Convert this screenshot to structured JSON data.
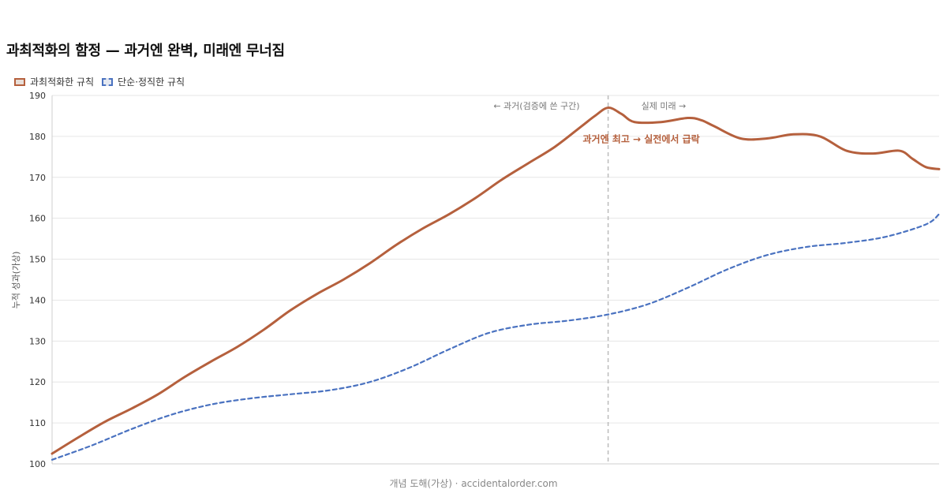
{
  "title": "과최적화의 함정 — 과거엔 완벽, 미래엔 무너짐",
  "footer": "개념 도해(가상) · accidentalorder.com",
  "colors": {
    "overfit": "#b5603d",
    "simple": "#4a72c0",
    "grid": "#e6e6e6",
    "divider": "#bbbbbb"
  },
  "chart_data": {
    "type": "line",
    "title": "과최적화의 함정 — 과거엔 완벽, 미래엔 무너짐",
    "ylabel": "누적 성과(가상)",
    "xlabel": "",
    "ylim": [
      100,
      190
    ],
    "yticks": [
      100,
      110,
      120,
      130,
      140,
      150,
      160,
      170,
      180,
      190
    ],
    "xlim": [
      0,
      67
    ],
    "grid": true,
    "legend_position": "top-left",
    "divider_x": 42,
    "region_labels": {
      "past": "← 과거(검증에 쓴 구간)",
      "future": "실제 미래 →"
    },
    "annotation": "과거엔 최고 → 실전에서 급락",
    "series": [
      {
        "name": "과최적화한 규칙",
        "style": "solid",
        "x": [
          0,
          2,
          4,
          6,
          8,
          10,
          12,
          14,
          16,
          18,
          20,
          22,
          24,
          26,
          28,
          30,
          32,
          34,
          36,
          38,
          40,
          41,
          42,
          43,
          44,
          46,
          48,
          49,
          50,
          52,
          54,
          56,
          58,
          60,
          62,
          64,
          65,
          66,
          67
        ],
        "values": [
          102.5,
          106.5,
          110.3,
          113.5,
          117.0,
          121.2,
          125.0,
          128.6,
          132.8,
          137.5,
          141.5,
          145.0,
          149.0,
          153.5,
          157.5,
          161.0,
          165.0,
          169.5,
          173.5,
          177.5,
          182.5,
          185.0,
          187.0,
          185.5,
          183.5,
          183.5,
          184.5,
          184.0,
          182.5,
          179.5,
          179.5,
          180.5,
          180.0,
          176.5,
          175.8,
          176.5,
          174.5,
          172.5,
          172.0
        ]
      },
      {
        "name": "단순·정직한 규칙",
        "style": "dashed",
        "x": [
          0,
          3,
          6,
          9,
          12,
          15,
          18,
          21,
          24,
          27,
          30,
          33,
          36,
          39,
          42,
          45,
          48,
          51,
          54,
          57,
          60,
          63,
          66,
          67
        ],
        "values": [
          101.0,
          104.5,
          108.5,
          112.0,
          114.5,
          116.0,
          117.0,
          118.0,
          120.0,
          123.5,
          128.0,
          132.0,
          134.0,
          135.0,
          136.5,
          139.0,
          143.0,
          147.5,
          151.0,
          153.0,
          154.0,
          155.5,
          158.5,
          161.0
        ]
      }
    ]
  }
}
